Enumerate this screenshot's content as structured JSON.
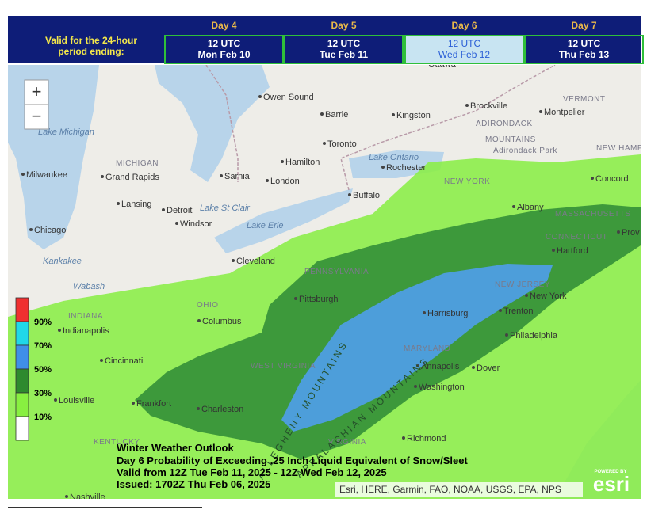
{
  "header": {
    "prompt": "Valid for the 24-hour period ending:",
    "columns": [
      {
        "day": "Day 4",
        "time": "12 UTC",
        "date": "Mon Feb 10",
        "selected": false
      },
      {
        "day": "Day 5",
        "time": "12 UTC",
        "date": "Tue Feb 11",
        "selected": false
      },
      {
        "day": "Day 6",
        "time": "12 UTC",
        "date": "Wed Feb 12",
        "selected": true
      },
      {
        "day": "Day 7",
        "time": "12 UTC",
        "date": "Thu Feb 13",
        "selected": false
      }
    ]
  },
  "map": {
    "zoom_in": "+",
    "zoom_out": "−",
    "legend": {
      "labels": [
        "90%",
        "70%",
        "50%",
        "30%",
        "10%"
      ],
      "colors": [
        "#f03030",
        "#20d8e8",
        "#3f8fe8",
        "#2e8a2e",
        "#88f040"
      ]
    },
    "places": [
      "Ottawa",
      "Owen Sound",
      "Barrie",
      "Kingston",
      "Brockville",
      "VERMONT",
      "Montpelier",
      "ADIRONDACK",
      "MOUNTAINS",
      "Adirondack Park",
      "Toronto",
      "Lake Michigan",
      "MICHIGAN",
      "Hamilton",
      "Lake Ontario",
      "Rochester",
      "NEW HAMPSHIRE",
      "Milwaukee",
      "Grand Rapids",
      "Sarnia",
      "London",
      "NEW YORK",
      "Concord",
      "Lansing",
      "Buffalo",
      "Albany",
      "Lake St Clair",
      "Detroit",
      "Windsor",
      "Lake Erie",
      "MASSACHUSETTS",
      "Chicago",
      "CONNECTICUT",
      "Prov",
      "Hartford",
      "Cleveland",
      "Kankakee",
      "PENNSYLVANIA",
      "Wabash",
      "NEW JERSEY",
      "New York",
      "OHIO",
      "Pittsburgh",
      "INDIANA",
      "Harrisburg",
      "Trenton",
      "Indianapolis",
      "Columbus",
      "Philadelphia",
      "MARYLAND",
      "Cincinnati",
      "WEST VIRGINIA",
      "Annapolis",
      "Dover",
      "Washington",
      "Louisville",
      "Frankfort",
      "Charleston",
      "KENTUCKY",
      "VIRGINIA",
      "Richmond",
      "Nashville",
      "ALLEGHENY MOUNTAINS",
      "APPALACHIAN MOUNTAINS"
    ],
    "caption": [
      "Winter Weather Outlook",
      "Day 6 Probability of Exceeding .25 Inch Liquid Equivalent of Snow/Sleet",
      "Valid from 12Z Tue Feb 11, 2025 - 12Z Wed Feb 12, 2025",
      "Issued: 1702Z Thu Feb 06, 2025"
    ],
    "attribution": "Esri, HERE, Garmin, FAO, NOAA, USGS, EPA, NPS",
    "logo_top": "POWERED BY",
    "logo": "esri"
  }
}
